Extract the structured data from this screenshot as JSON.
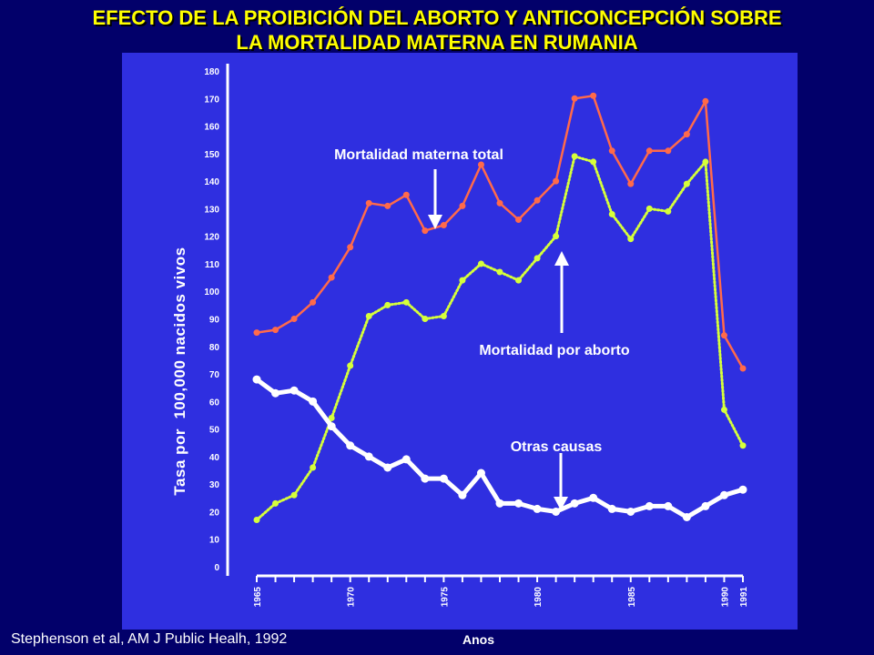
{
  "title": {
    "line1": "EFECTO DE LA PROIBICIÓN DEL ABORTO Y ANTICONCEPCIÓN SOBRE",
    "line2": "LA MORTALIDAD MATERNA EN RUMANIA"
  },
  "citation": "Stephenson et al, AM J Public Healh, 1992",
  "colors": {
    "background": "#02006a",
    "panel": "#2f2fe0",
    "title": "#ffff00",
    "total": "#ff6a4a",
    "abortion": "#d6ff3a",
    "other": "#ffffff"
  },
  "chart_data": {
    "type": "line",
    "title": "EFECTO DE LA PROIBICIÓN DEL ABORTO Y ANTICONCEPCIÓN SOBRE LA MORTALIDAD MATERNA EN RUMANIA",
    "xlabel": "Anos",
    "ylabel": "Tasa por  100,000 nacidos vivos",
    "ylim": [
      0,
      180
    ],
    "xlim": [
      1965,
      1991
    ],
    "yticks": [
      0,
      10,
      20,
      30,
      40,
      50,
      60,
      70,
      80,
      90,
      100,
      110,
      120,
      130,
      140,
      150,
      160,
      170,
      180
    ],
    "xtick_labels": [
      {
        "x": 1965,
        "label": "1965"
      },
      {
        "x": 1970,
        "label": "1970"
      },
      {
        "x": 1975,
        "label": "1975"
      },
      {
        "x": 1980,
        "label": "1980"
      },
      {
        "x": 1985,
        "label": "1985"
      },
      {
        "x": 1990,
        "label": "1990"
      },
      {
        "x": 1991,
        "label": "1991"
      }
    ],
    "x": [
      1965,
      1966,
      1967,
      1968,
      1969,
      1970,
      1971,
      1972,
      1973,
      1974,
      1975,
      1976,
      1977,
      1978,
      1979,
      1980,
      1981,
      1982,
      1983,
      1984,
      1985,
      1986,
      1987,
      1988,
      1989,
      1990,
      1991
    ],
    "series": [
      {
        "name": "Mortalidad materna total",
        "key": "total",
        "values": [
          85,
          86,
          90,
          96,
          105,
          116,
          132,
          131,
          135,
          122,
          124,
          131,
          146,
          132,
          126,
          133,
          140,
          170,
          171,
          151,
          139,
          151,
          151,
          157,
          169,
          84,
          72
        ]
      },
      {
        "name": "Mortalidad por aborto",
        "key": "abortion",
        "values": [
          17,
          23,
          26,
          36,
          54,
          73,
          91,
          95,
          96,
          90,
          91,
          104,
          110,
          107,
          104,
          112,
          120,
          149,
          147,
          128,
          119,
          130,
          129,
          139,
          147,
          57,
          44
        ]
      },
      {
        "name": "Otras causas",
        "key": "other",
        "values": [
          68,
          63,
          64,
          60,
          51,
          44,
          40,
          36,
          39,
          32,
          32,
          26,
          34,
          23,
          23,
          21,
          20,
          23,
          25,
          21,
          20,
          22,
          22,
          18,
          22,
          26,
          28
        ]
      }
    ],
    "annotations": [
      {
        "text": "Mortalidad materna total",
        "series": "total"
      },
      {
        "text": "Mortalidad por aborto",
        "series": "abortion"
      },
      {
        "text": "Otras causas",
        "series": "other"
      }
    ]
  }
}
